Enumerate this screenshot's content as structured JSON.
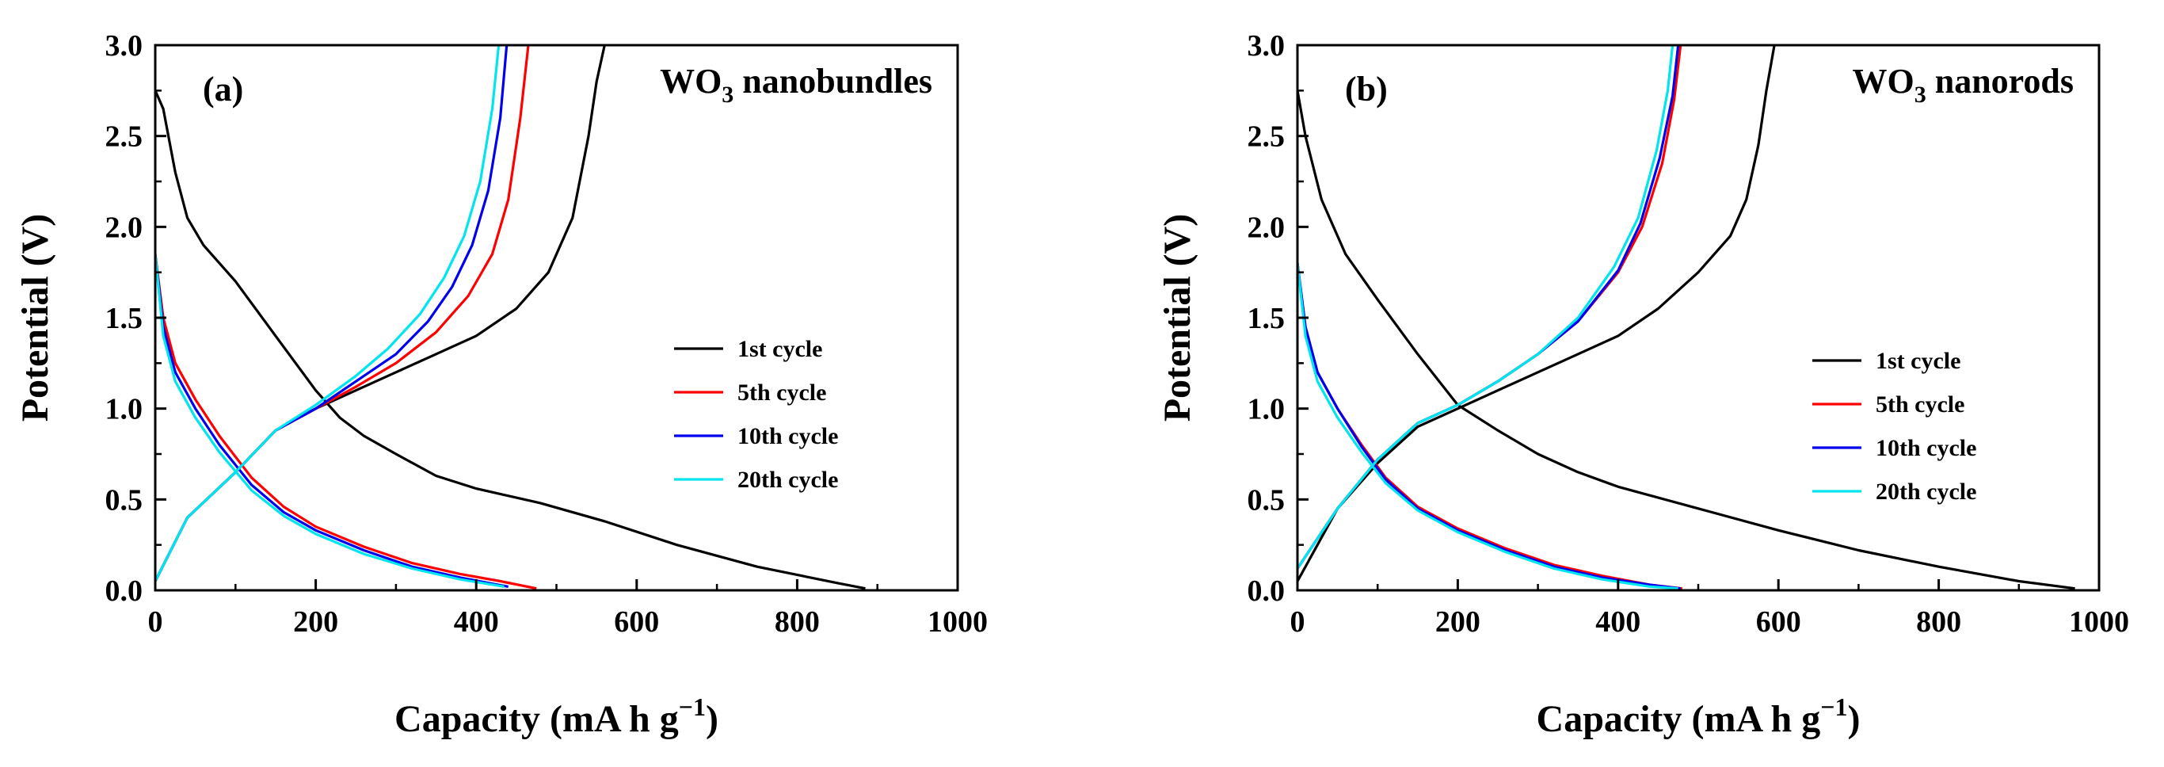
{
  "chart_data": [
    {
      "type": "line",
      "panel_label": "(a)",
      "title": "WO3 nanobundles",
      "title_parts": {
        "base": "WO",
        "sub": "3",
        "rest": " nanobundles"
      },
      "xlabel": "Capacity (mA h g",
      "xlabel_sup": "−1",
      "xlabel_end": ")",
      "ylabel": "Potential (V)",
      "xlim": [
        0,
        1000
      ],
      "ylim": [
        0,
        3.0
      ],
      "xticks": [
        "0",
        "200",
        "400",
        "600",
        "800",
        "1000"
      ],
      "yticks": [
        "0.0",
        "0.5",
        "1.0",
        "1.5",
        "2.0",
        "2.5",
        "3.0"
      ],
      "grid": false,
      "legend_position": "center-right",
      "series": [
        {
          "name": "1st cycle",
          "color": "#000000",
          "discharge": {
            "x": [
              0,
              10,
              25,
              40,
              60,
              100,
              150,
              200,
              230,
              260,
              300,
              350,
              400,
              480,
              560,
              650,
              750,
              850,
              885
            ],
            "y": [
              2.75,
              2.65,
              2.3,
              2.05,
              1.9,
              1.7,
              1.4,
              1.1,
              0.95,
              0.85,
              0.75,
              0.63,
              0.56,
              0.48,
              0.38,
              0.25,
              0.13,
              0.04,
              0.01
            ]
          },
          "charge": {
            "x": [
              0,
              40,
              100,
              150,
              200,
              250,
              300,
              350,
              400,
              450,
              490,
              520,
              540,
              550,
              560
            ],
            "y": [
              0.05,
              0.4,
              0.65,
              0.88,
              1.0,
              1.1,
              1.2,
              1.3,
              1.4,
              1.55,
              1.75,
              2.05,
              2.5,
              2.8,
              3.0
            ]
          }
        },
        {
          "name": "5th cycle",
          "color": "#ff0000",
          "discharge": {
            "x": [
              0,
              10,
              25,
              50,
              80,
              120,
              160,
              200,
              260,
              320,
              380,
              430,
              475
            ],
            "y": [
              1.85,
              1.5,
              1.25,
              1.05,
              0.85,
              0.62,
              0.46,
              0.35,
              0.24,
              0.15,
              0.09,
              0.05,
              0.01
            ]
          },
          "charge": {
            "x": [
              0,
              40,
              100,
              150,
              200,
              250,
              300,
              350,
              390,
              420,
              440,
              455,
              465
            ],
            "y": [
              0.05,
              0.4,
              0.65,
              0.88,
              1.0,
              1.12,
              1.25,
              1.42,
              1.62,
              1.85,
              2.15,
              2.6,
              3.0
            ]
          }
        },
        {
          "name": "10th cycle",
          "color": "#0000ee",
          "discharge": {
            "x": [
              0,
              10,
              25,
              50,
              80,
              120,
              160,
              200,
              260,
              320,
              380,
              440
            ],
            "y": [
              1.85,
              1.45,
              1.2,
              1.0,
              0.8,
              0.58,
              0.43,
              0.33,
              0.22,
              0.13,
              0.07,
              0.02
            ]
          },
          "charge": {
            "x": [
              0,
              40,
              100,
              150,
              200,
              250,
              300,
              340,
              370,
              395,
              415,
              430,
              438
            ],
            "y": [
              0.05,
              0.4,
              0.65,
              0.88,
              1.0,
              1.15,
              1.3,
              1.48,
              1.67,
              1.9,
              2.2,
              2.6,
              3.0
            ]
          }
        },
        {
          "name": "20th cycle",
          "color": "#00e5ee",
          "discharge": {
            "x": [
              0,
              10,
              25,
              50,
              80,
              120,
              160,
              200,
              260,
              320,
              380,
              435
            ],
            "y": [
              1.85,
              1.4,
              1.15,
              0.95,
              0.76,
              0.55,
              0.41,
              0.31,
              0.2,
              0.12,
              0.06,
              0.02
            ]
          },
          "charge": {
            "x": [
              0,
              40,
              100,
              150,
              200,
              250,
              290,
              330,
              360,
              385,
              405,
              420,
              428
            ],
            "y": [
              0.05,
              0.4,
              0.65,
              0.88,
              1.02,
              1.18,
              1.33,
              1.52,
              1.72,
              1.95,
              2.25,
              2.65,
              3.0
            ]
          }
        }
      ]
    },
    {
      "type": "line",
      "panel_label": "(b)",
      "title": "WO3 nanorods",
      "title_parts": {
        "base": "WO",
        "sub": "3",
        "rest": " nanorods"
      },
      "xlabel": "Capacity (mA h g",
      "xlabel_sup": "−1",
      "xlabel_end": ")",
      "ylabel": "Potential (V)",
      "xlim": [
        0,
        1000
      ],
      "ylim": [
        0,
        3.0
      ],
      "xticks": [
        "0",
        "200",
        "400",
        "600",
        "800",
        "1000"
      ],
      "yticks": [
        "0.0",
        "0.5",
        "1.0",
        "1.5",
        "2.0",
        "2.5",
        "3.0"
      ],
      "grid": false,
      "legend_position": "center-right",
      "series": [
        {
          "name": "1st cycle",
          "color": "#000000",
          "discharge": {
            "x": [
              0,
              10,
              30,
              60,
              100,
              150,
              200,
              250,
              300,
              350,
              400,
              500,
              600,
              700,
              800,
              900,
              970
            ],
            "y": [
              2.75,
              2.5,
              2.15,
              1.85,
              1.6,
              1.3,
              1.02,
              0.88,
              0.75,
              0.65,
              0.57,
              0.45,
              0.33,
              0.22,
              0.13,
              0.05,
              0.01
            ]
          },
          "charge": {
            "x": [
              0,
              50,
              100,
              150,
              200,
              250,
              300,
              350,
              400,
              450,
              500,
              540,
              560,
              575,
              585,
              595
            ],
            "y": [
              0.05,
              0.45,
              0.7,
              0.9,
              1.0,
              1.1,
              1.2,
              1.3,
              1.4,
              1.55,
              1.75,
              1.95,
              2.15,
              2.45,
              2.75,
              3.0
            ]
          }
        },
        {
          "name": "5th cycle",
          "color": "#ff0000",
          "discharge": {
            "x": [
              0,
              10,
              25,
              50,
              80,
              110,
              150,
              200,
              260,
              320,
              380,
              440,
              480
            ],
            "y": [
              1.8,
              1.45,
              1.2,
              1.0,
              0.8,
              0.62,
              0.46,
              0.34,
              0.23,
              0.14,
              0.08,
              0.03,
              0.01
            ]
          },
          "charge": {
            "x": [
              0,
              50,
              100,
              150,
              200,
              250,
              300,
              350,
              400,
              430,
              455,
              470,
              478
            ],
            "y": [
              0.12,
              0.45,
              0.72,
              0.92,
              1.02,
              1.15,
              1.3,
              1.48,
              1.75,
              2.0,
              2.35,
              2.7,
              3.0
            ]
          }
        },
        {
          "name": "10th cycle",
          "color": "#0000ee",
          "discharge": {
            "x": [
              0,
              10,
              25,
              50,
              80,
              110,
              150,
              200,
              260,
              320,
              380,
              440,
              478
            ],
            "y": [
              1.8,
              1.45,
              1.2,
              1.0,
              0.79,
              0.61,
              0.45,
              0.33,
              0.22,
              0.13,
              0.07,
              0.03,
              0.01
            ]
          },
          "charge": {
            "x": [
              0,
              50,
              100,
              150,
              200,
              250,
              300,
              350,
              400,
              428,
              452,
              468,
              475
            ],
            "y": [
              0.12,
              0.45,
              0.72,
              0.92,
              1.02,
              1.15,
              1.3,
              1.48,
              1.76,
              2.02,
              2.38,
              2.72,
              3.0
            ]
          }
        },
        {
          "name": "20th cycle",
          "color": "#00e5ee",
          "discharge": {
            "x": [
              0,
              10,
              25,
              50,
              80,
              110,
              150,
              200,
              260,
              320,
              380,
              440,
              475
            ],
            "y": [
              1.8,
              1.4,
              1.15,
              0.95,
              0.76,
              0.59,
              0.44,
              0.32,
              0.21,
              0.12,
              0.06,
              0.02,
              0.01
            ]
          },
          "charge": {
            "x": [
              0,
              50,
              100,
              150,
              200,
              250,
              300,
              350,
              395,
              425,
              448,
              462,
              468
            ],
            "y": [
              0.12,
              0.45,
              0.72,
              0.92,
              1.02,
              1.15,
              1.3,
              1.5,
              1.78,
              2.05,
              2.42,
              2.75,
              3.0
            ]
          }
        }
      ]
    }
  ]
}
